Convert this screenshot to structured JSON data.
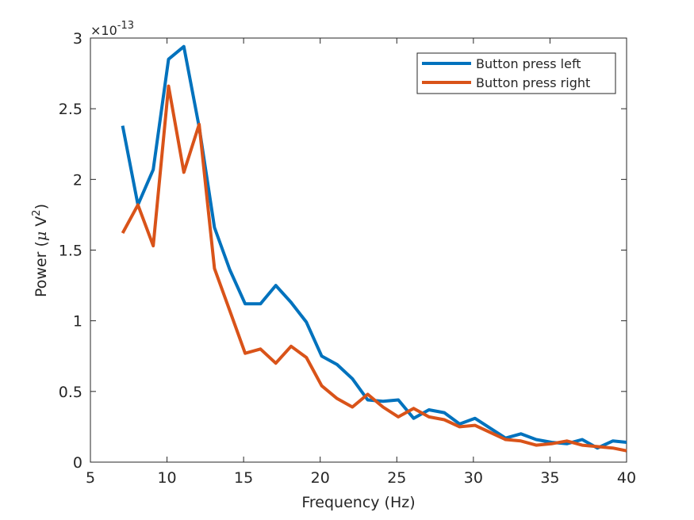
{
  "chart_data": {
    "type": "line",
    "xlabel": "Frequency (Hz)",
    "ylabel_prefix": "Power (",
    "ylabel_mu": "μ",
    "ylabel_unit": " V",
    "ylabel_sup": "2",
    "ylabel_suffix": ")",
    "y_multiplier_prefix": "×10",
    "y_multiplier_exp": "-13",
    "xlim": [
      5,
      40
    ],
    "ylim": [
      0,
      3
    ],
    "xticks": [
      "5",
      "10",
      "15",
      "20",
      "25",
      "30",
      "35",
      "40"
    ],
    "yticks": [
      "0",
      "0.5",
      "1",
      "1.5",
      "2",
      "2.5",
      "3"
    ],
    "x": [
      7.1,
      8.1,
      9.1,
      10.1,
      11.1,
      12.1,
      13.1,
      14.1,
      15.1,
      16.1,
      17.1,
      18.1,
      19.1,
      20.1,
      21.1,
      22.1,
      23.1,
      24.1,
      25.1,
      26.1,
      27.1,
      28.1,
      29.1,
      30.1,
      31.1,
      32.1,
      33.1,
      34.1,
      35.1,
      36.1,
      37.1,
      38.1,
      39.1,
      40.1
    ],
    "series": [
      {
        "name": "Button press left",
        "color": "#0072BD",
        "values": [
          2.38,
          1.82,
          2.07,
          2.85,
          2.94,
          2.37,
          1.66,
          1.36,
          1.12,
          1.12,
          1.25,
          1.13,
          0.99,
          0.75,
          0.69,
          0.59,
          0.44,
          0.43,
          0.44,
          0.31,
          0.37,
          0.35,
          0.27,
          0.31,
          0.24,
          0.17,
          0.2,
          0.16,
          0.14,
          0.13,
          0.16,
          0.1,
          0.15,
          0.14
        ]
      },
      {
        "name": "Button press right",
        "color": "#D95319",
        "values": [
          1.62,
          1.82,
          1.53,
          2.66,
          2.05,
          2.39,
          1.37,
          1.07,
          0.77,
          0.8,
          0.7,
          0.82,
          0.74,
          0.54,
          0.45,
          0.39,
          0.48,
          0.39,
          0.32,
          0.38,
          0.32,
          0.3,
          0.25,
          0.26,
          0.21,
          0.16,
          0.15,
          0.12,
          0.13,
          0.15,
          0.12,
          0.11,
          0.1,
          0.08
        ]
      }
    ],
    "legend_position": "top-right",
    "grid": false
  }
}
